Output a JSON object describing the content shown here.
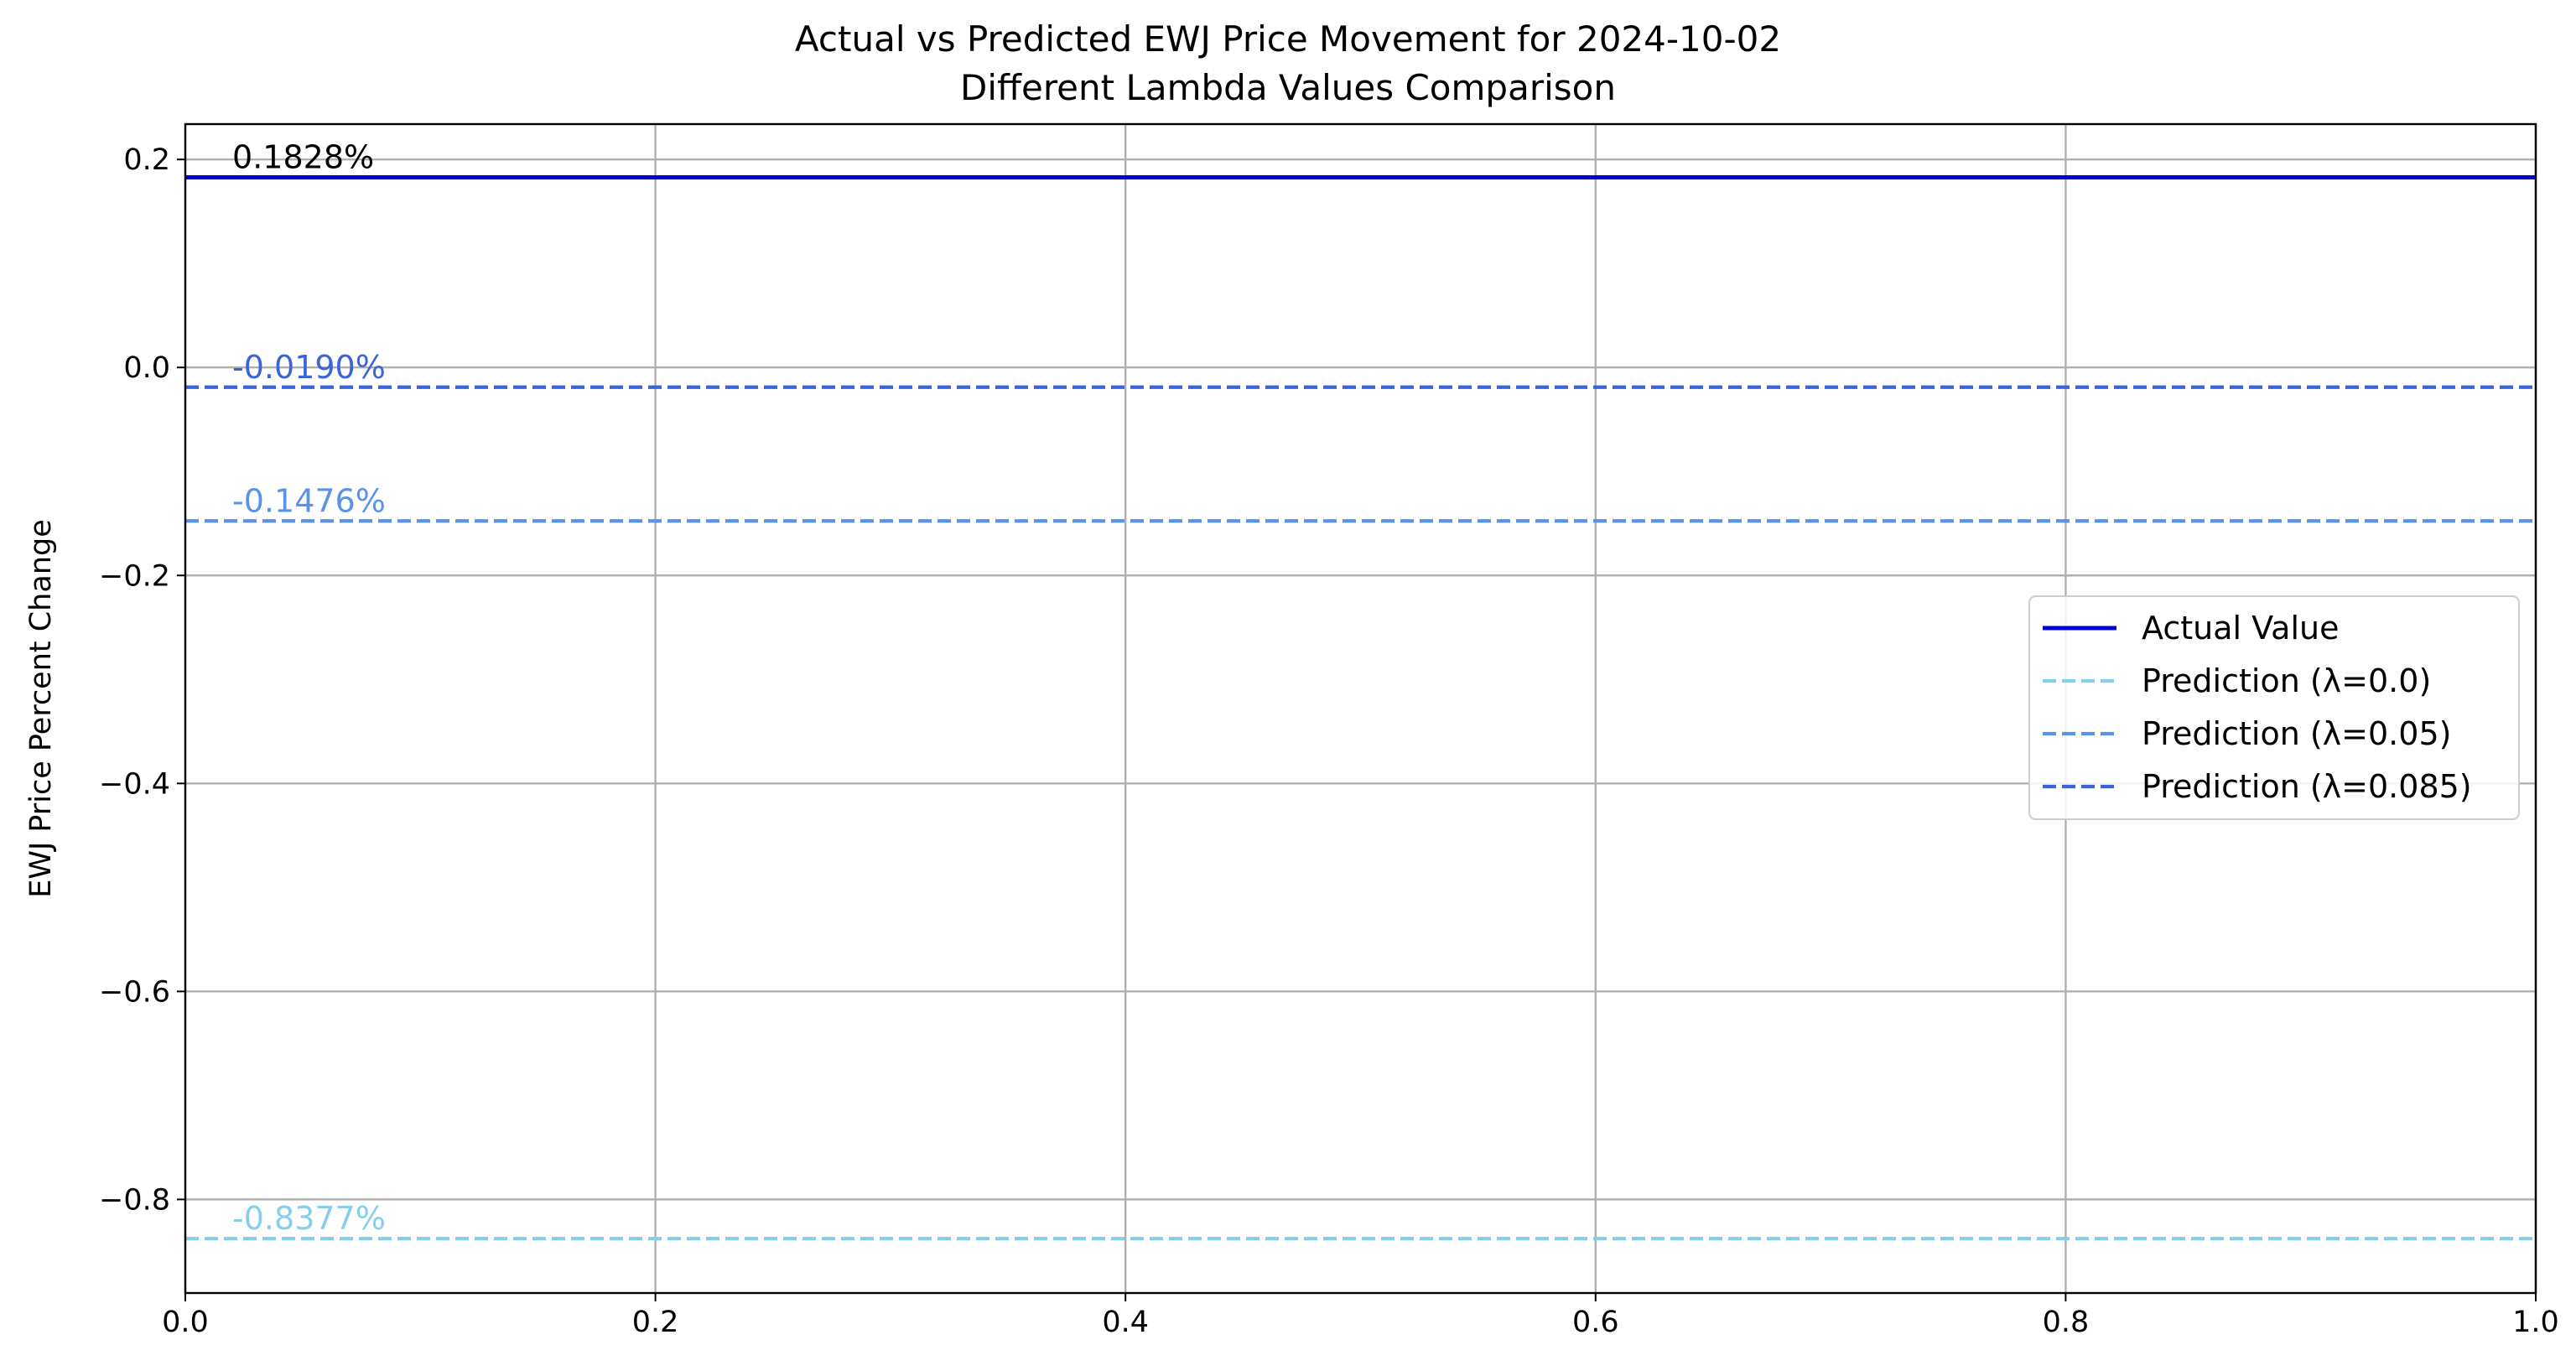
{
  "chart_data": {
    "type": "line",
    "title": "Actual vs Predicted EWJ Price Movement for 2024-10-02",
    "subtitle": "Different Lambda Values Comparison",
    "xlabel": "",
    "ylabel": "EWJ Price Percent Change",
    "xlim": [
      0.0,
      1.0
    ],
    "ylim": [
      -0.89,
      0.234
    ],
    "x_ticks": [
      0.0,
      0.2,
      0.4,
      0.6,
      0.8,
      1.0
    ],
    "x_tick_labels": [
      "0.0",
      "0.2",
      "0.4",
      "0.6",
      "0.8",
      "1.0"
    ],
    "y_ticks": [
      0.2,
      0.0,
      -0.2,
      -0.4,
      -0.6,
      -0.8
    ],
    "y_tick_labels": [
      "0.2",
      "0.0",
      "−0.2",
      "−0.4",
      "−0.6",
      "−0.8"
    ],
    "grid": true,
    "legend_position": "center-right",
    "series": [
      {
        "name": "Actual Value",
        "value": 0.1828,
        "annotation": "0.1828%",
        "color": "#0000dd",
        "style": "solid"
      },
      {
        "name": "Prediction (λ=0.0)",
        "value": -0.8377,
        "annotation": "-0.8377%",
        "color": "#87ceeb",
        "style": "dashed"
      },
      {
        "name": "Prediction (λ=0.05)",
        "value": -0.1476,
        "annotation": "-0.1476%",
        "color": "#5b93e6",
        "style": "dashed"
      },
      {
        "name": "Prediction (λ=0.085)",
        "value": -0.019,
        "annotation": "-0.0190%",
        "color": "#3a64d8",
        "style": "dashed"
      }
    ]
  }
}
